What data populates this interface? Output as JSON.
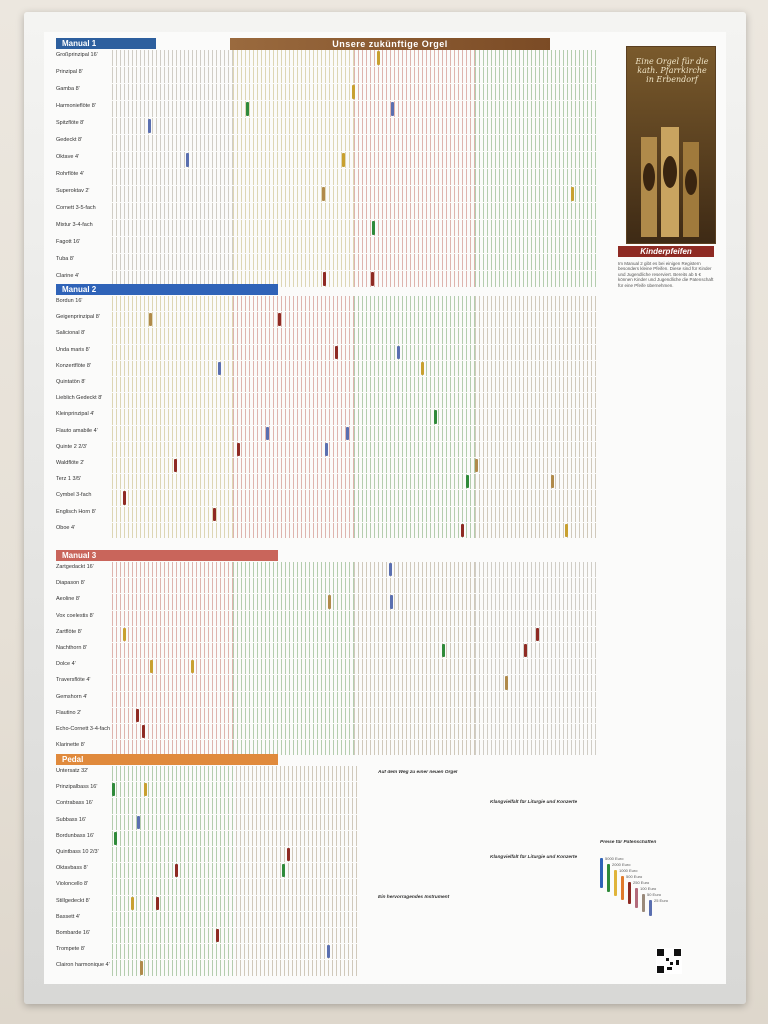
{
  "title": "Unsere zukünftige Orgel",
  "manuals": [
    {
      "label": "Manual 1",
      "color": "#2d5f9e",
      "stops": [
        "Großprinzipal 16'",
        "Prinzipal 8'",
        "Gamba 8'",
        "Harmonieflöte 8'",
        "Spitzflöte 8'",
        "Gedeckt 8'",
        "Oktave 4'",
        "Rohrflöte 4'",
        "Superoktav 2'",
        "Cornett 3-5-fach",
        "Mixtur 3-4-fach",
        "Fagott 16'",
        "Tuba 8'",
        "Clarine 4'"
      ]
    },
    {
      "label": "Manual 2",
      "color": "#2f63b8",
      "stops": [
        "Bordun 16'",
        "Geigenprinzipal 8'",
        "Salicional 8'",
        "Unda maris 8'",
        "Konzertflöte 8'",
        "Quintatön 8'",
        "Lieblich Gedeckt 8'",
        "Kleinprinzipal 4'",
        "Flauto amabile 4'",
        "Quinte 2 2/3'",
        "Waldflöte 2'",
        "Terz 1 3/5'",
        "Cymbel 3-fach",
        "Englisch Horn 8'",
        "Oboe 4'"
      ]
    },
    {
      "label": "Manual 3",
      "color": "#c9655b",
      "stops": [
        "Zartgedackt 16'",
        "Diapason 8'",
        "Aeoline 8'",
        "Vox coelestis 8'",
        "Zartflöte 8'",
        "Nachthorn 8'",
        "Dolce 4'",
        "Traversflöte 4'",
        "Gemshorn 4'",
        "Flautino 2'",
        "Echo-Cornett 3-4-fach",
        "Klarinette 8'"
      ]
    },
    {
      "label": "Pedal",
      "color": "#e08a3c",
      "stops": [
        "Untersatz 32'",
        "Prinzipalbass 16'",
        "Contrabass 16'",
        "Subbass 16'",
        "Bordunbass 16'",
        "Quintbass 10 2/3'",
        "Oktavbass 8'",
        "Violoncello 8'",
        "Stillgedeckt 8'",
        "Bassett 4'",
        "Bombarde 16'",
        "Trompete 8'",
        "Clairon harmonique 4'"
      ]
    }
  ],
  "side": {
    "booklet_title": "Eine Orgel für die kath. Pfarrkirche in Erbendorf",
    "kinder_heading": "Kinderpfeifen",
    "kinder_text": "Im Manual 2 gibt es bei einigen Registern besonders kleine Pfeifen. Diese sind für Kinder und Jugendliche reserviert. Bereits ab 5 € können Kinder und Jugendliche die Patenschaft für eine Pfeife übernehmen."
  },
  "texts": {
    "col1_heading": "Auf dem Weg zu einer neuen Orgel",
    "col1_sub": "Ein hervorragendes Instrument",
    "col2_heading": "Klangvielfalt für Liturgie und Konzerte",
    "col2_sub": "Klangvielfalt für Liturgie und Konzerte",
    "legend_heading": "Preise für Patenschaften"
  },
  "prices": [
    "5000 Euro",
    "2000 Euro",
    "1000 Euro",
    "500 Euro",
    "250 Euro",
    "100 Euro",
    "50 Euro",
    "25 Euro"
  ],
  "price_colors": [
    "#2f63b8",
    "#2f8a3a",
    "#e0b43a",
    "#e07a2c",
    "#8e2a23",
    "#b26a7a",
    "#9a8a7a",
    "#5a6fb0"
  ]
}
